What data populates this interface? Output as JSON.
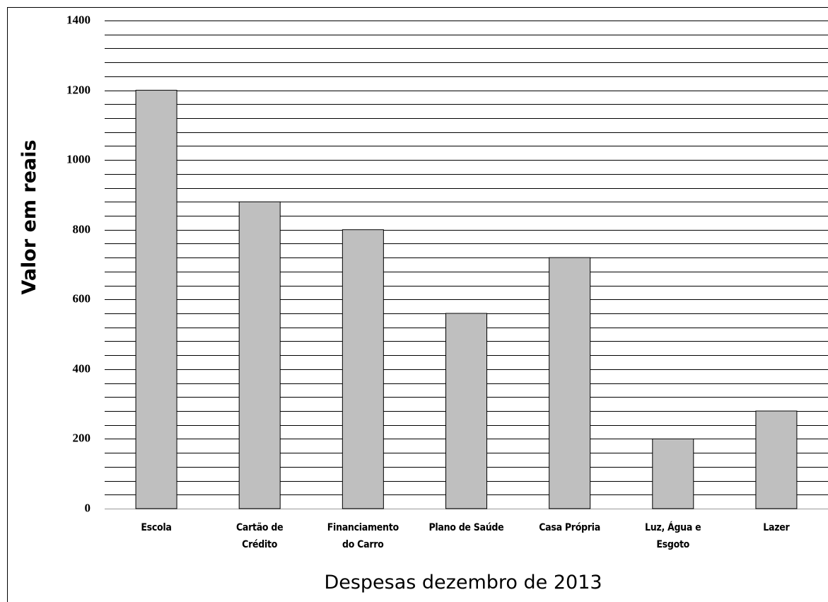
{
  "chart_data": {
    "type": "bar",
    "x_label": "Despesas dezembro de 2013",
    "y_label": "Valor em reais",
    "categories": [
      "Escola",
      "Cartão de\nCrédito",
      "Financiamento\ndo Carro",
      "Plano de Saúde",
      "Casa Própria",
      "Luz, Água e\nEsgoto",
      "Lazer"
    ],
    "values": [
      1200,
      880,
      800,
      560,
      720,
      200,
      280
    ],
    "color": "#bfbfbf",
    "ylim": [
      0,
      1400
    ],
    "yticks": [
      0,
      200,
      400,
      600,
      800,
      1000,
      1200,
      1400
    ],
    "yticks_minor": [
      40,
      80,
      120,
      160,
      240,
      280,
      320,
      360,
      440,
      480,
      520,
      560,
      640,
      680,
      720,
      760,
      840,
      880,
      920,
      960,
      1040,
      1080,
      1120,
      1160,
      1240,
      1280,
      1320,
      1360
    ],
    "grid": true
  }
}
